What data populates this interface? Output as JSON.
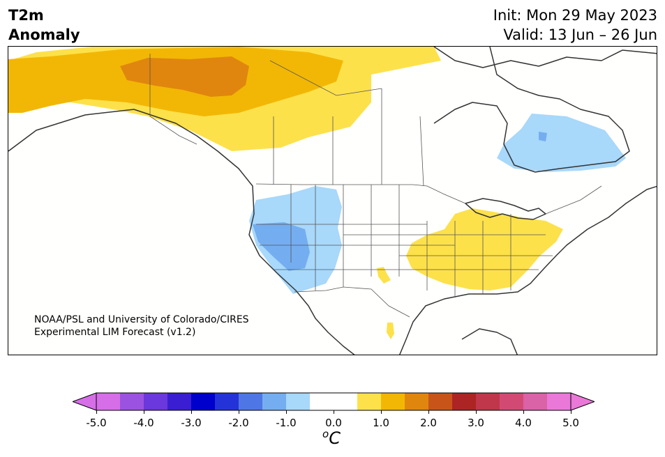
{
  "title": {
    "line1": "T2m",
    "line2": "Anomaly"
  },
  "dates": {
    "init": "Init: Mon 29 May 2023",
    "valid": "Valid: 13 Jun – 26 Jun"
  },
  "credit": {
    "line1": "NOAA/PSL and University of Colorado/CIRES",
    "line2": "Experimental LIM Forecast (v1.2)"
  },
  "colorbar": {
    "ticks": [
      "-5.0",
      "-4.0",
      "-3.0",
      "-2.0",
      "-1.0",
      "0.0",
      "1.0",
      "2.0",
      "3.0",
      "4.0",
      "5.0"
    ],
    "unit_sup": "o",
    "unit": "C",
    "colors": [
      "#d66ee8",
      "#9c52e0",
      "#6a38dc",
      "#3a1ed2",
      "#0000cc",
      "#2433d8",
      "#4e76e4",
      "#74aef0",
      "#a8d8fa",
      "#ffffff",
      "#ffffff",
      "#fde14a",
      "#f2b705",
      "#e0860e",
      "#c8541a",
      "#ad2424",
      "#c0364a",
      "#d24a74",
      "#da62a6",
      "#ea78d8"
    ]
  }
}
